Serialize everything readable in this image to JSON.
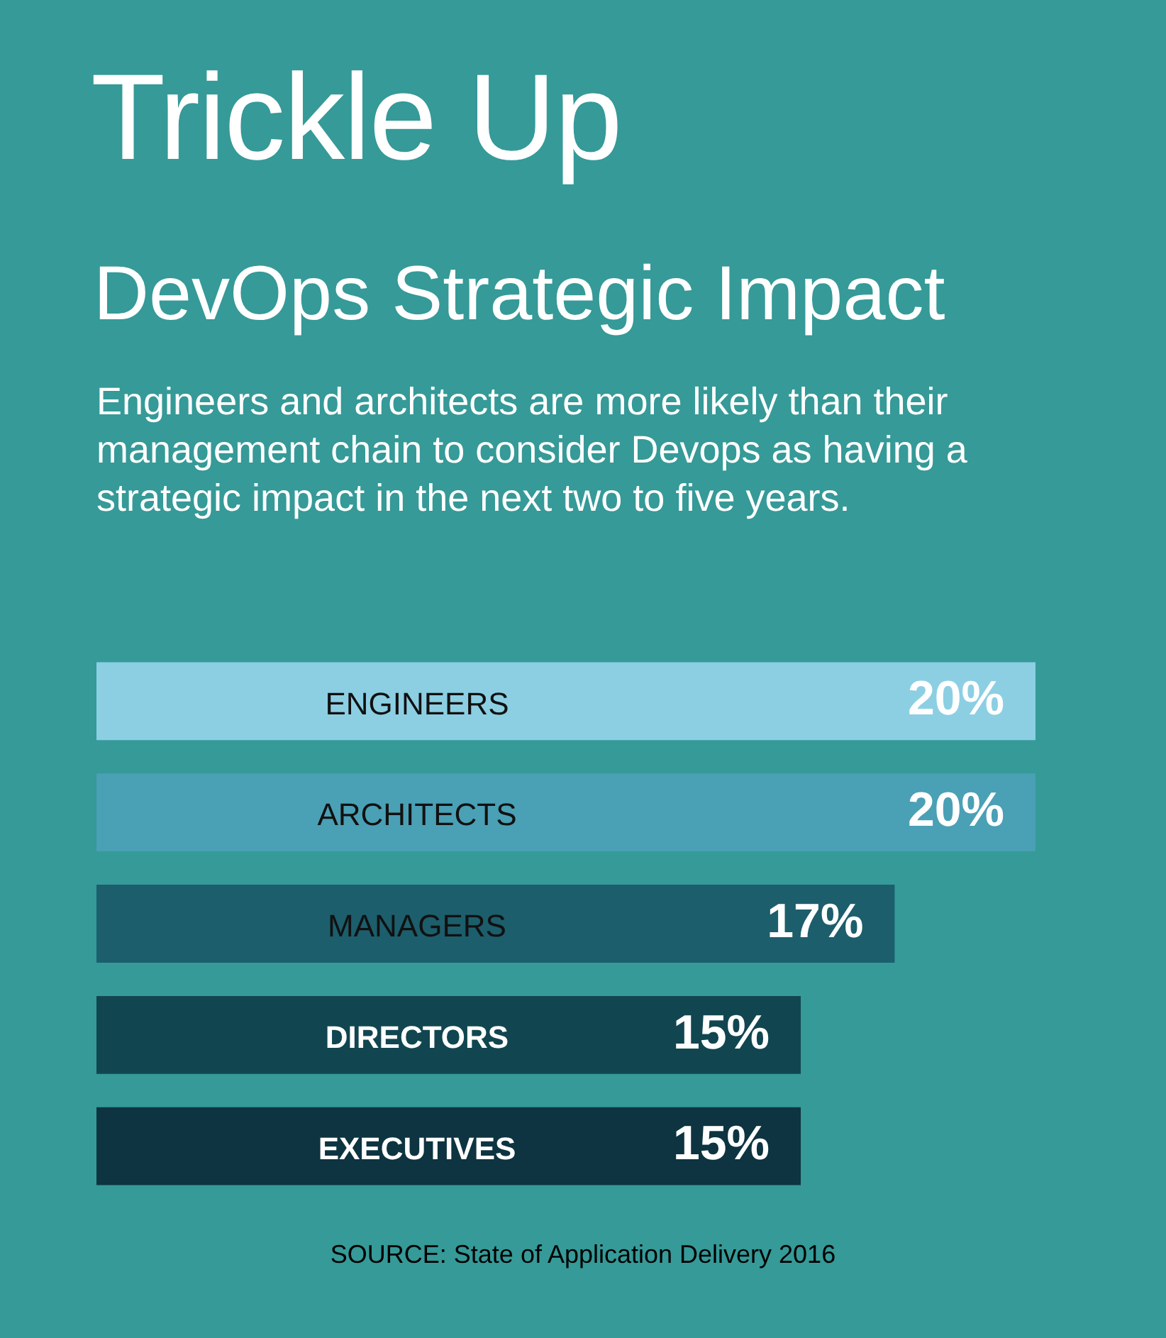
{
  "chart_data": {
    "type": "bar",
    "orientation": "horizontal",
    "title": "Trickle Up",
    "subtitle": "DevOps Strategic Impact",
    "annotations": [
      "Engineers and architects are more likely than their management chain to consider Devops as having a strategic impact in the next two to five years.",
      "SOURCE: State of Application Delivery 2016"
    ],
    "categories": [
      "ENGINEERS",
      "ARCHITECTS",
      "MANAGERS",
      "DIRECTORS",
      "EXECUTIVES"
    ],
    "values": [
      20,
      20,
      17,
      15,
      15
    ],
    "value_labels": [
      "20%",
      "20%",
      "17%",
      "15%",
      "15%"
    ],
    "colors": [
      "#8ccfe3",
      "#4aa0b5",
      "#1c5e6c",
      "#114650",
      "#0d3440"
    ],
    "xlim": [
      0,
      20
    ],
    "tick_labels": false
  }
}
